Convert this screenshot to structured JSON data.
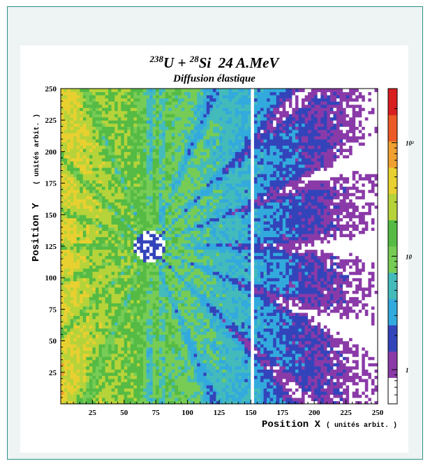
{
  "chart_data": {
    "type": "heatmap",
    "title": {
      "projectile_mass": "238",
      "projectile": "U + ",
      "target_mass": "28",
      "target": "Si",
      "energy": "24 A.MeV"
    },
    "subtitle": "Diffusion élastique",
    "xlabel": "Position X",
    "xlabel_unit": "( unités arbit. )",
    "ylabel": "Position Y",
    "ylabel_unit": "( unités arbit. )",
    "xlim": [
      0,
      250
    ],
    "ylim": [
      0,
      250
    ],
    "x_ticks": [
      25,
      50,
      75,
      100,
      125,
      150,
      175,
      200,
      225,
      250
    ],
    "y_ticks": [
      25,
      50,
      75,
      100,
      125,
      150,
      175,
      200,
      225,
      250
    ],
    "colorbar": {
      "scale": "log",
      "ticks": [
        "1",
        "10",
        "10²"
      ],
      "tick_values": [
        1,
        10,
        100
      ],
      "range": [
        0.5,
        300
      ]
    },
    "center": [
      70,
      125
    ],
    "center_hole_radius": 12,
    "dead_strip_x": 151,
    "colors": [
      "#ffffff",
      "#8a3aa8",
      "#3344bb",
      "#33aadd",
      "#44bbbb",
      "#77cc55",
      "#55bb44",
      "#b6d33a",
      "#e8d030",
      "#f0a030",
      "#ec5a25",
      "#d81f1f"
    ]
  }
}
